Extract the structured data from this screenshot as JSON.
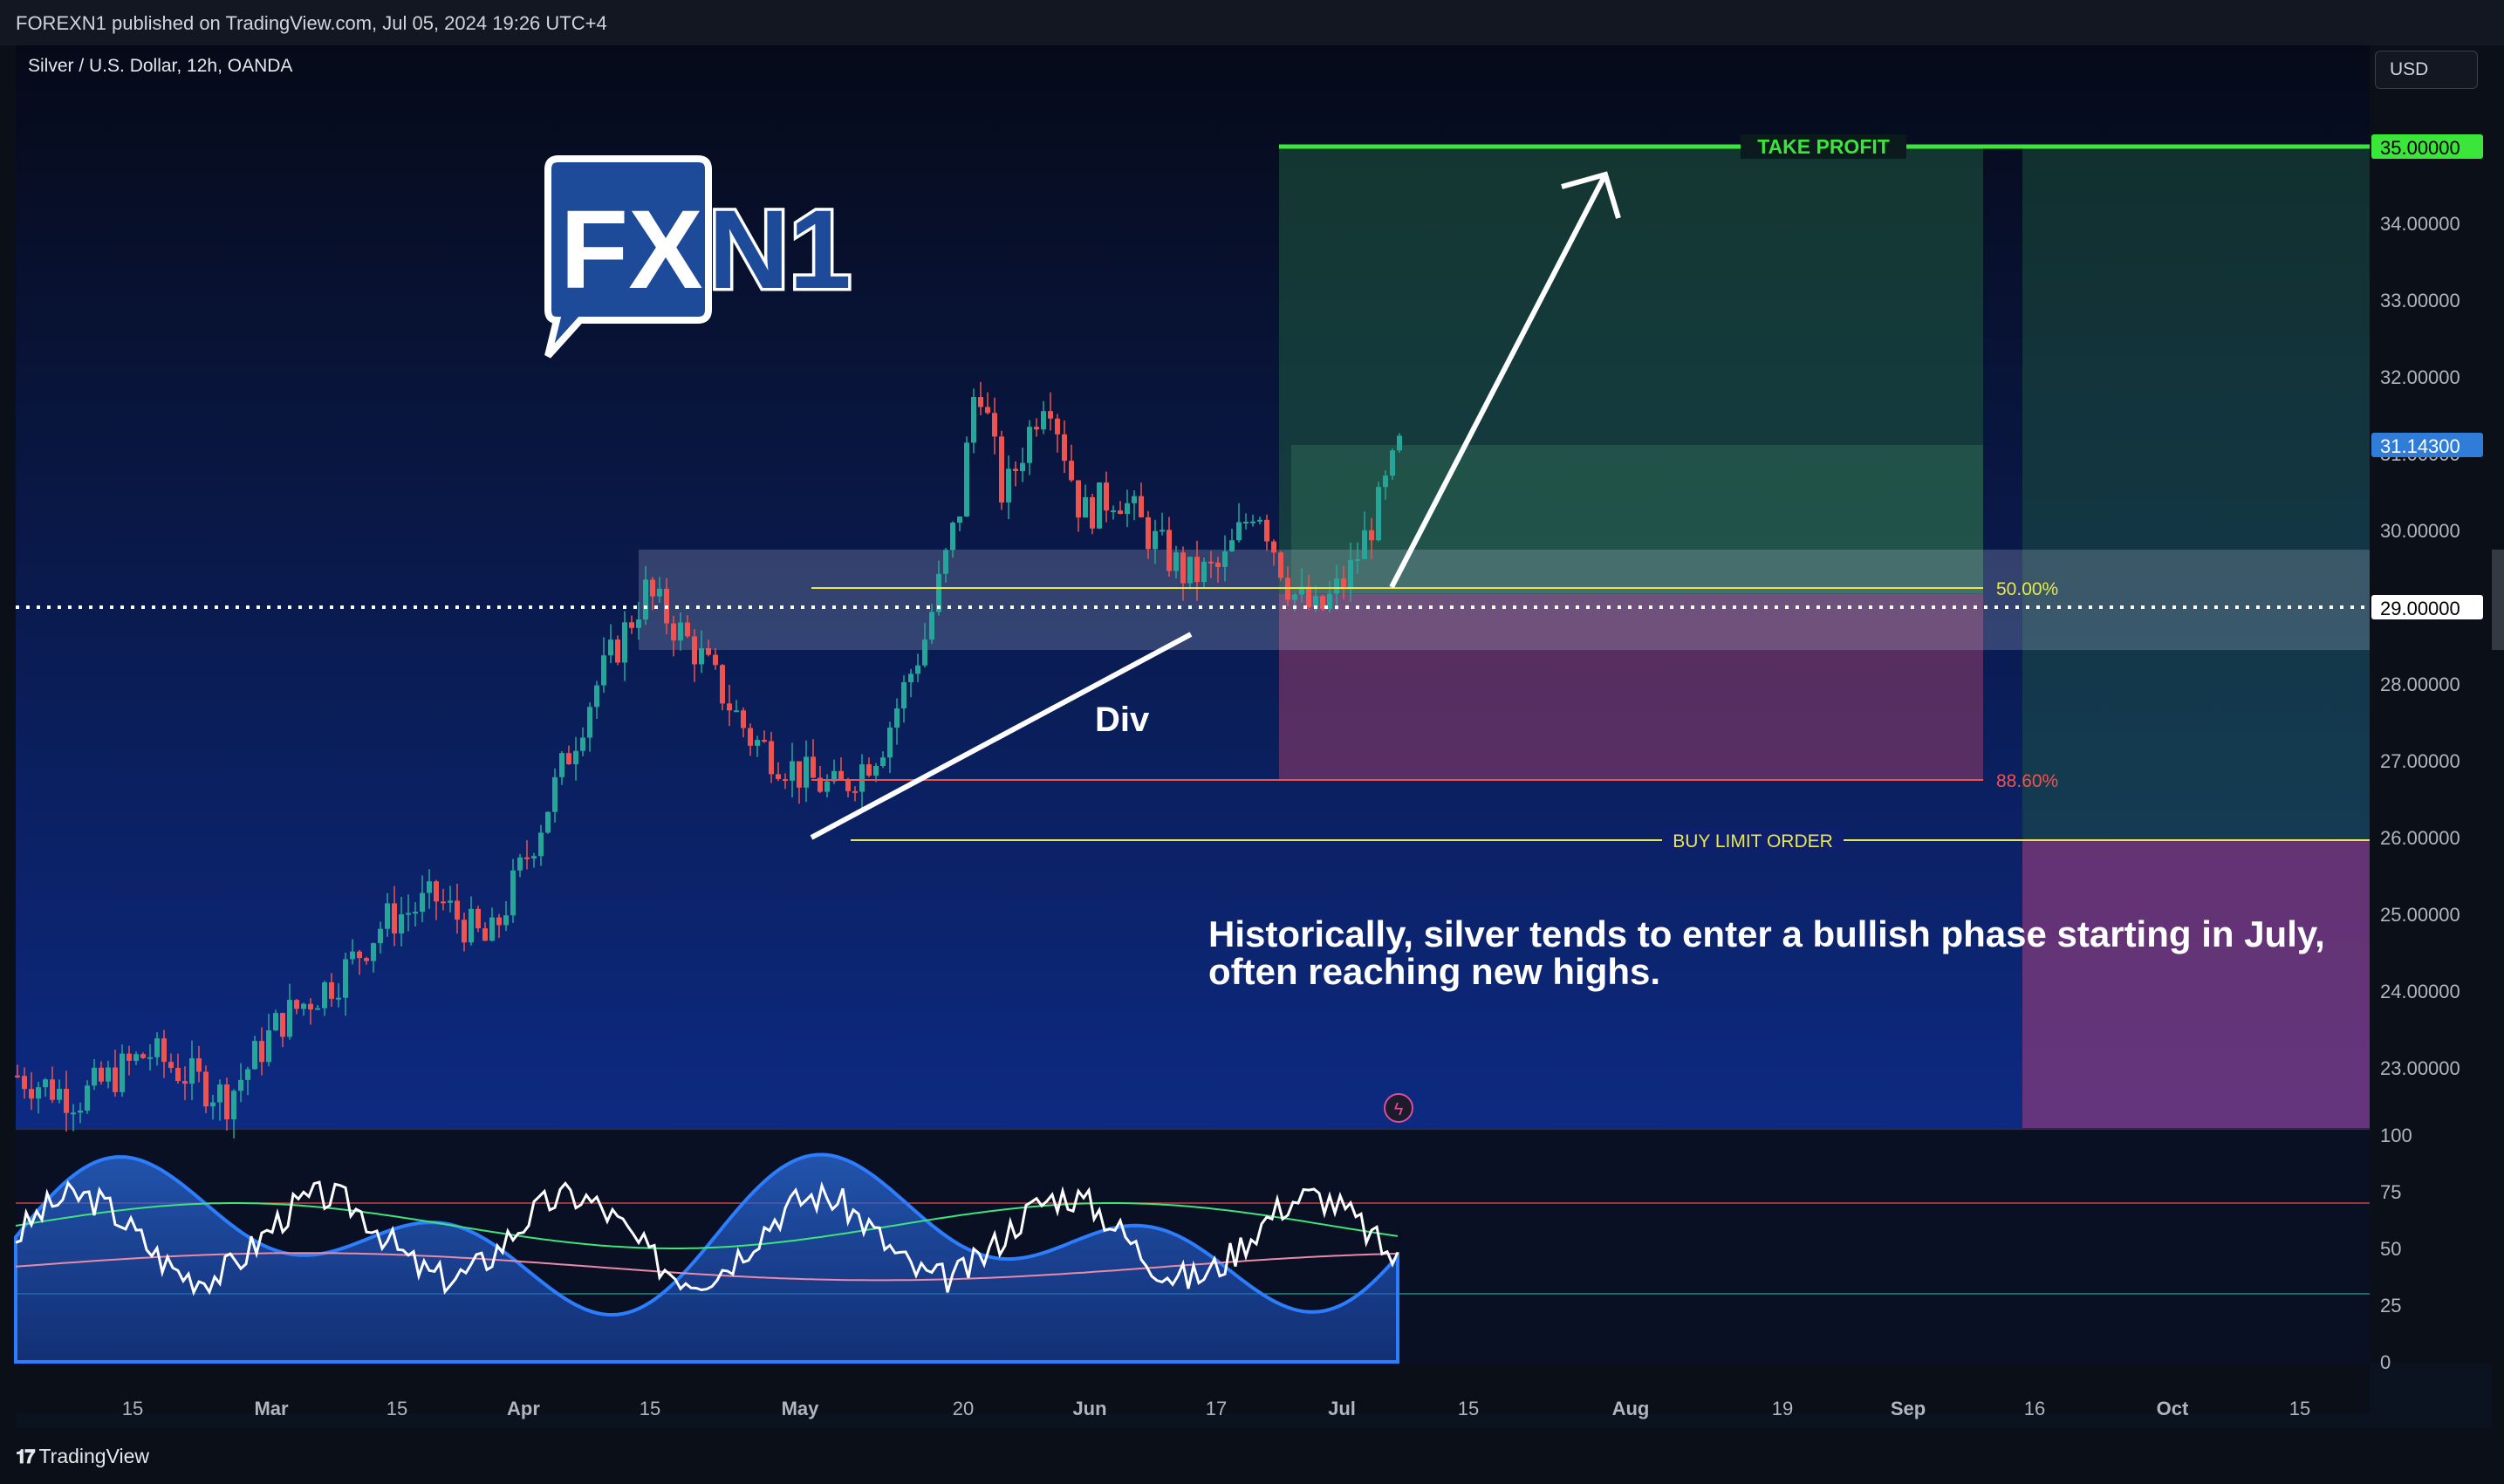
{
  "header": {
    "published": "FOREXN1 published on TradingView.com, Jul 05, 2024 19:26 UTC+4"
  },
  "chart": {
    "symbol": "Silver / U.S. Dollar, 12h, OANDA",
    "currency_button": "USD",
    "logo_text_a": "FX",
    "logo_text_b": "N1",
    "price_axis": [
      "35.00000",
      "34.00000",
      "33.00000",
      "32.00000",
      "31.00000",
      "30.00000",
      "29.00000",
      "28.00000",
      "27.00000",
      "26.00000",
      "25.00000",
      "24.00000",
      "23.00000"
    ],
    "price_current": "31.14300",
    "price_take_profit": "35.00000",
    "price_line": "29.00000",
    "take_profit_label": "TAKE PROFIT",
    "buy_limit_label": "BUY LIMIT ORDER",
    "fib_50_label": "50.00%",
    "fib_886_label": "88.60%",
    "div_label": "Div",
    "annotation_line1": "Historically, silver tends to enter a bullish phase starting in July,",
    "annotation_line2": "often reaching new highs.",
    "time_axis": [
      "15",
      "Mar",
      "15",
      "Apr",
      "15",
      "May",
      "20",
      "Jun",
      "17",
      "Jul",
      "15",
      "Aug",
      "19",
      "Sep",
      "16",
      "Oct",
      "15"
    ],
    "indicator_axis": [
      "100",
      "75",
      "50",
      "25",
      "0"
    ],
    "colors": {
      "bull": "#26a69a",
      "bear": "#ef5350",
      "take_profit": "#39e639",
      "fib": "#e8e84a",
      "profit_zone": "#1e5e3e",
      "loss_zone": "#7a3a6e"
    }
  },
  "footer": {
    "brand": "TradingView"
  }
}
